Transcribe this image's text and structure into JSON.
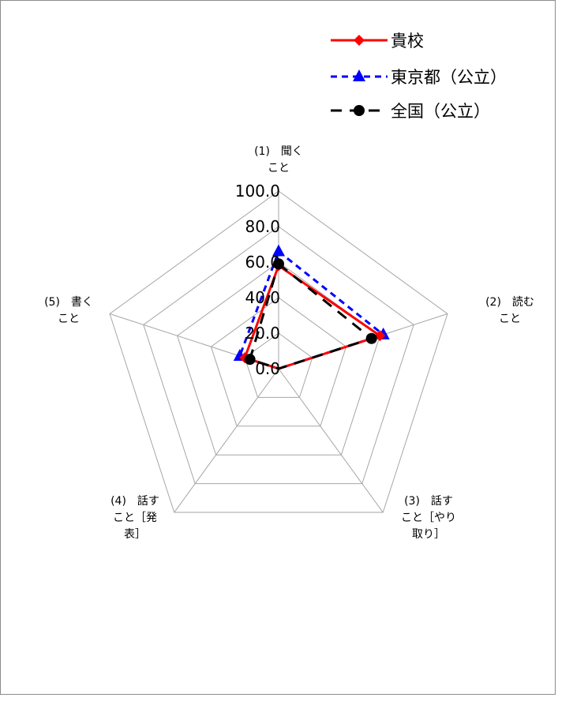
{
  "chart_data": {
    "type": "radar",
    "title": "",
    "categories": [
      [
        "(1)　聞く",
        "こと"
      ],
      [
        "(2)　読む",
        "こと"
      ],
      [
        "(3)　話す",
        "こと［やり",
        "取り］"
      ],
      [
        "(4)　話す",
        "こと［発",
        "表］"
      ],
      [
        "(5)　書く",
        "こと"
      ]
    ],
    "ticks": [
      "0.0",
      "20.0",
      "40.0",
      "60.0",
      "80.0",
      "100.0"
    ],
    "rlim": [
      0,
      100
    ],
    "grid": true,
    "legend": "top-right",
    "series": [
      {
        "name": "貴校",
        "values": [
          58,
          60,
          0,
          0,
          20
        ],
        "color": "#ff0000",
        "dash": "solid",
        "marker": "diamond"
      },
      {
        "name": "東京都（公立）",
        "values": [
          66,
          62,
          0,
          0,
          23
        ],
        "color": "#0000ff",
        "dash": "dashed",
        "marker": "triangle"
      },
      {
        "name": "全国（公立）",
        "values": [
          59,
          55,
          0,
          0,
          17
        ],
        "color": "#000000",
        "dash": "longdash",
        "marker": "circle"
      }
    ]
  }
}
